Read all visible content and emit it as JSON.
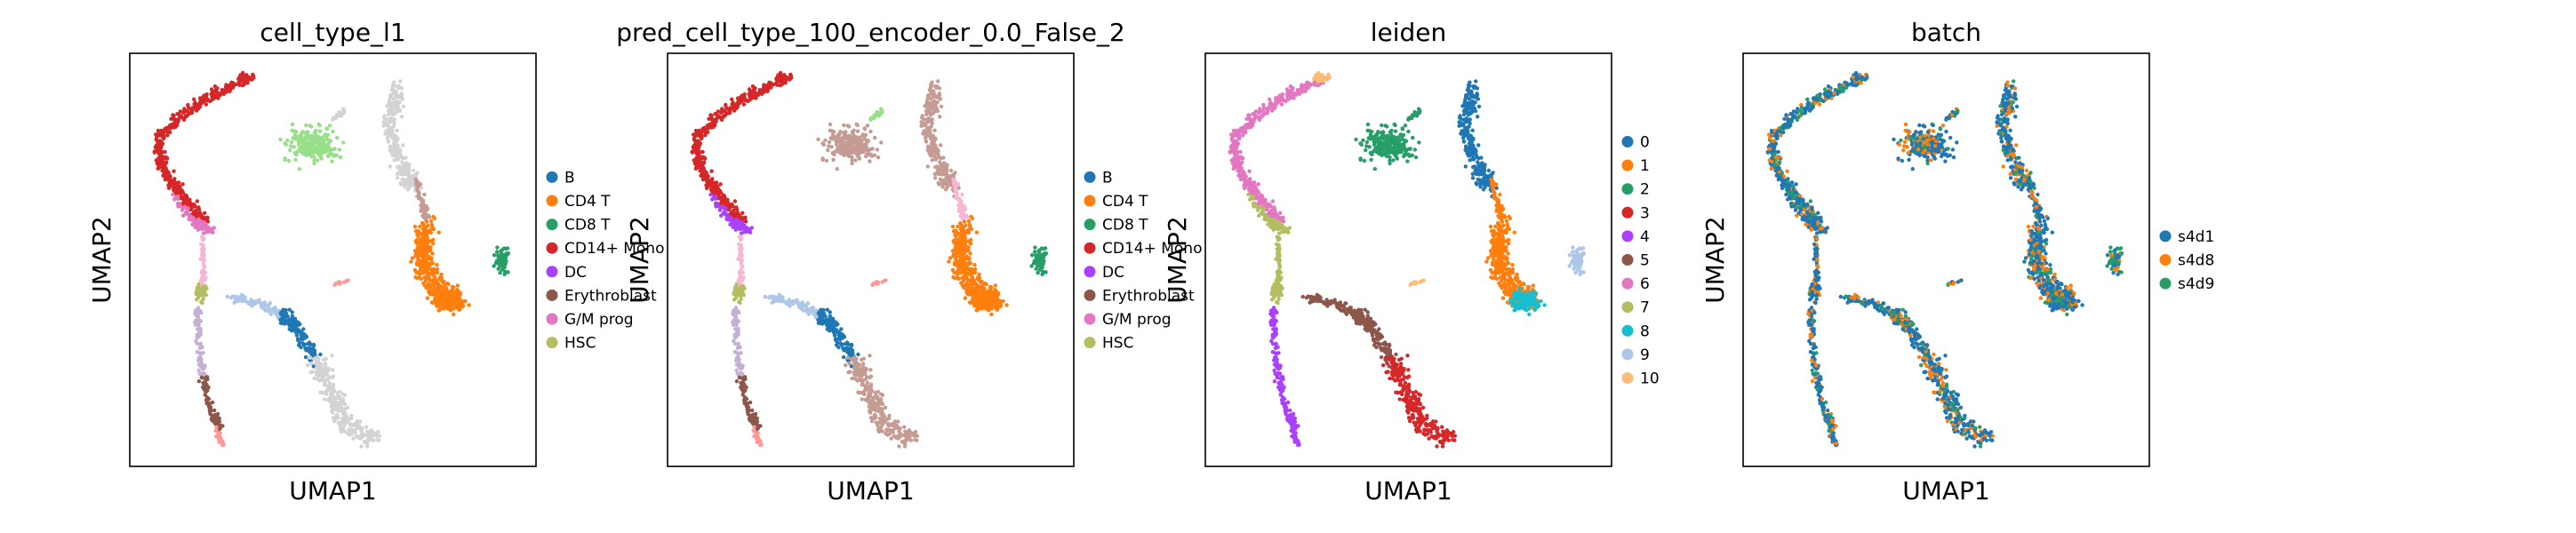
{
  "chart_data": [
    {
      "type": "scatter",
      "title": "cell_type_l1",
      "xlabel": "UMAP1",
      "ylabel": "UMAP2",
      "legend_placement": "right",
      "grid": false,
      "legend": [
        {
          "label": "B",
          "color": "#1f77b4"
        },
        {
          "label": "CD4 T",
          "color": "#ff7f0e"
        },
        {
          "label": "CD8 T",
          "color": "#279e68"
        },
        {
          "label": "CD14+ Mono",
          "color": "#d62728"
        },
        {
          "label": "DC",
          "color": "#aa40fc"
        },
        {
          "label": "Erythroblast",
          "color": "#8c564b"
        },
        {
          "label": "G/M prog",
          "color": "#e377c2"
        },
        {
          "label": "HSC",
          "color": "#b5bd61"
        }
      ]
    },
    {
      "type": "scatter",
      "title": "pred_cell_type_100_encoder_0.0_False_2",
      "xlabel": "UMAP1",
      "ylabel": "UMAP2",
      "legend_placement": "right",
      "grid": false,
      "legend": [
        {
          "label": "B",
          "color": "#1f77b4"
        },
        {
          "label": "CD4 T",
          "color": "#ff7f0e"
        },
        {
          "label": "CD8 T",
          "color": "#279e68"
        },
        {
          "label": "CD14+ Mono",
          "color": "#d62728"
        },
        {
          "label": "DC",
          "color": "#aa40fc"
        },
        {
          "label": "Erythroblast",
          "color": "#8c564b"
        },
        {
          "label": "G/M prog",
          "color": "#e377c2"
        },
        {
          "label": "HSC",
          "color": "#b5bd61"
        }
      ]
    },
    {
      "type": "scatter",
      "title": "leiden",
      "xlabel": "UMAP1",
      "ylabel": "UMAP2",
      "legend_placement": "right",
      "grid": false,
      "legend": [
        {
          "label": "0",
          "color": "#1f77b4"
        },
        {
          "label": "1",
          "color": "#ff7f0e"
        },
        {
          "label": "2",
          "color": "#279e68"
        },
        {
          "label": "3",
          "color": "#d62728"
        },
        {
          "label": "4",
          "color": "#aa40fc"
        },
        {
          "label": "5",
          "color": "#8c564b"
        },
        {
          "label": "6",
          "color": "#e377c2"
        },
        {
          "label": "7",
          "color": "#b5bd61"
        },
        {
          "label": "8",
          "color": "#17becf"
        },
        {
          "label": "9",
          "color": "#aec7e8"
        },
        {
          "label": "10",
          "color": "#ffbb78"
        }
      ]
    },
    {
      "type": "scatter",
      "title": "batch",
      "xlabel": "UMAP1",
      "ylabel": "UMAP2",
      "legend_placement": "right",
      "grid": false,
      "legend": [
        {
          "label": "s4d1",
          "color": "#1f77b4"
        },
        {
          "label": "s4d8",
          "color": "#ff7f0e"
        },
        {
          "label": "s4d9",
          "color": "#279e68"
        }
      ]
    }
  ],
  "colors": {
    "unlabeled": "#d3d3d3",
    "light_green": "#98df8a",
    "light_blue": "#aec7e8",
    "light_purple": "#c5b0d5",
    "pink": "#f7b6d2",
    "salmon": "#ff9896",
    "tan": "#c49c94"
  }
}
